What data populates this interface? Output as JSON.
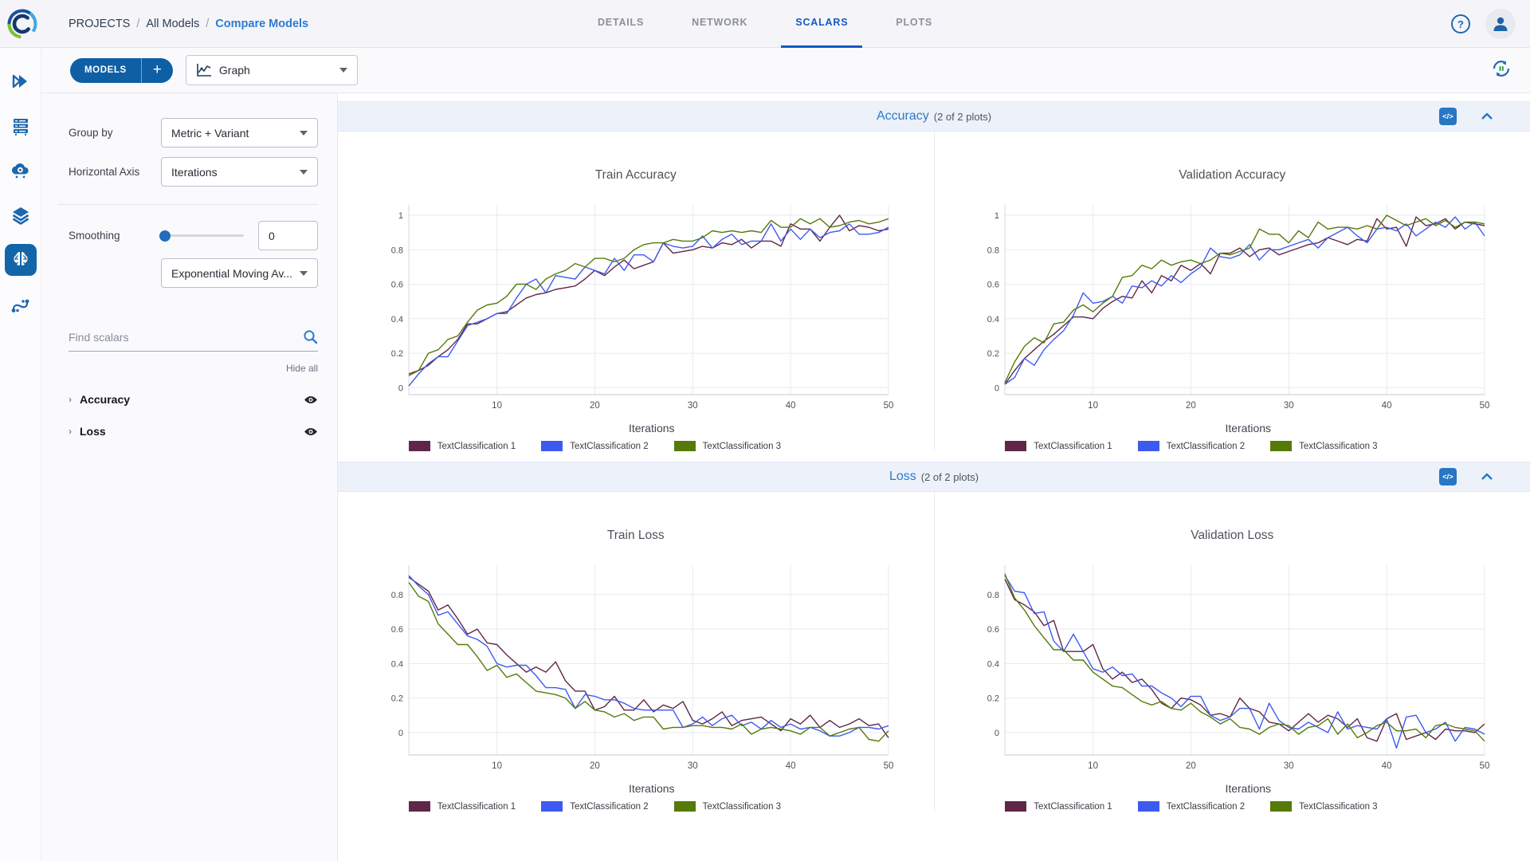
{
  "header": {
    "breadcrumb_separator": "/",
    "breadcrumbs": [
      {
        "label": "PROJECTS"
      },
      {
        "label": "All Models"
      },
      {
        "label": "Compare Models"
      }
    ],
    "tabs": [
      {
        "label": "DETAILS",
        "active": false
      },
      {
        "label": "NETWORK",
        "active": false
      },
      {
        "label": "SCALARS",
        "active": true
      },
      {
        "label": "PLOTS",
        "active": false
      }
    ]
  },
  "toolbar": {
    "models_button_label": "MODELS",
    "add_button_label": "+",
    "view_selector_value": "Graph"
  },
  "sidebar_rail": {
    "items": [
      "chevrons",
      "servers",
      "cloud-gear",
      "layers",
      "brain",
      "pipelines"
    ],
    "active_item": "brain"
  },
  "controls": {
    "group_by_label": "Group by",
    "group_by_value": "Metric + Variant",
    "horizontal_axis_label": "Horizontal Axis",
    "horizontal_axis_value": "Iterations",
    "smoothing_label": "Smoothing",
    "smoothing_value": "0",
    "smoothing_type_value": "Exponential Moving Av...",
    "search_placeholder": "Find scalars",
    "hide_all_label": "Hide all",
    "metric_groups": [
      {
        "label": "Accuracy"
      },
      {
        "label": "Loss"
      }
    ]
  },
  "sections": [
    {
      "title": "Accuracy",
      "subtitle": "(2 of 2 plots)",
      "code_icon_label": "</>"
    },
    {
      "title": "Loss",
      "subtitle": "(2 of 2 plots)",
      "code_icon_label": "</>"
    }
  ],
  "colors": {
    "series1": "#5f2747",
    "series2": "#3d5af0",
    "series3": "#557a0a",
    "accent_blue": "#2777c4",
    "grid": "#e7eaf2",
    "axis": "#c4c8d2"
  },
  "chart_data": [
    {
      "type": "line",
      "title": "Train Accuracy",
      "xlabel": "Iterations",
      "x_ticks": [
        10,
        20,
        30,
        40,
        50
      ],
      "y_ticks": [
        0,
        0.2,
        0.4,
        0.6,
        0.8,
        1
      ],
      "xlim": [
        1,
        50
      ],
      "ylim": [
        -0.04,
        1.06
      ],
      "series": [
        {
          "name": "TextClassification 1",
          "color": "#5f2747",
          "values": [
            0.08,
            0.1,
            0.13,
            0.18,
            0.22,
            0.28,
            0.37,
            0.37,
            0.4,
            0.43,
            0.44,
            0.48,
            0.52,
            0.54,
            0.55,
            0.57,
            0.58,
            0.59,
            0.63,
            0.68,
            0.65,
            0.7,
            0.74,
            0.69,
            0.71,
            0.73,
            0.84,
            0.78,
            0.79,
            0.8,
            0.82,
            0.81,
            0.84,
            0.83,
            0.86,
            0.81,
            0.85,
            0.85,
            0.82,
            0.95,
            0.92,
            0.92,
            0.85,
            0.93,
            1.0,
            0.91,
            0.94,
            0.93,
            0.91,
            0.92
          ]
        },
        {
          "name": "TextClassification 2",
          "color": "#3d5af0",
          "values": [
            0.01,
            0.08,
            0.14,
            0.18,
            0.18,
            0.27,
            0.36,
            0.38,
            0.4,
            0.43,
            0.43,
            0.52,
            0.6,
            0.63,
            0.55,
            0.65,
            0.64,
            0.63,
            0.7,
            0.68,
            0.66,
            0.75,
            0.68,
            0.77,
            0.77,
            0.73,
            0.84,
            0.82,
            0.81,
            0.82,
            0.88,
            0.81,
            0.86,
            0.89,
            0.83,
            0.85,
            0.85,
            0.95,
            0.85,
            0.92,
            0.86,
            0.92,
            0.87,
            0.9,
            0.91,
            0.95,
            0.89,
            0.89,
            0.9,
            0.93
          ]
        },
        {
          "name": "TextClassification 3",
          "color": "#557a0a",
          "values": [
            0.07,
            0.1,
            0.2,
            0.22,
            0.28,
            0.3,
            0.38,
            0.45,
            0.48,
            0.49,
            0.53,
            0.6,
            0.6,
            0.57,
            0.63,
            0.66,
            0.68,
            0.72,
            0.7,
            0.75,
            0.75,
            0.73,
            0.75,
            0.8,
            0.83,
            0.84,
            0.84,
            0.86,
            0.85,
            0.85,
            0.87,
            0.91,
            0.9,
            0.91,
            0.9,
            0.91,
            0.9,
            0.97,
            0.93,
            0.93,
            0.98,
            0.95,
            0.98,
            0.93,
            0.94,
            0.96,
            0.97,
            0.95,
            0.96,
            0.98
          ]
        }
      ]
    },
    {
      "type": "line",
      "title": "Validation Accuracy",
      "xlabel": "Iterations",
      "x_ticks": [
        10,
        20,
        30,
        40,
        50
      ],
      "y_ticks": [
        0,
        0.2,
        0.4,
        0.6,
        0.8,
        1
      ],
      "xlim": [
        1,
        50
      ],
      "ylim": [
        -0.04,
        1.06
      ],
      "series": [
        {
          "name": "TextClassification 1",
          "color": "#5f2747",
          "values": [
            0.02,
            0.1,
            0.17,
            0.22,
            0.27,
            0.31,
            0.36,
            0.41,
            0.41,
            0.4,
            0.46,
            0.5,
            0.53,
            0.52,
            0.62,
            0.55,
            0.65,
            0.62,
            0.71,
            0.68,
            0.72,
            0.66,
            0.78,
            0.78,
            0.81,
            0.76,
            0.8,
            0.81,
            0.77,
            0.79,
            0.81,
            0.83,
            0.84,
            0.87,
            0.85,
            0.83,
            0.86,
            0.85,
            0.98,
            0.92,
            0.93,
            0.82,
            0.99,
            0.94,
            0.95,
            0.98,
            0.92,
            0.96,
            0.95,
            0.94
          ]
        },
        {
          "name": "TextClassification 2",
          "color": "#3d5af0",
          "values": [
            0.02,
            0.06,
            0.17,
            0.13,
            0.22,
            0.28,
            0.33,
            0.42,
            0.55,
            0.49,
            0.5,
            0.53,
            0.49,
            0.59,
            0.58,
            0.62,
            0.59,
            0.65,
            0.61,
            0.66,
            0.7,
            0.81,
            0.76,
            0.75,
            0.77,
            0.83,
            0.74,
            0.8,
            0.8,
            0.82,
            0.84,
            0.86,
            0.81,
            0.87,
            0.9,
            0.93,
            0.88,
            0.84,
            0.92,
            0.93,
            0.91,
            0.95,
            0.88,
            0.92,
            0.96,
            0.93,
            0.99,
            0.92,
            0.96,
            0.88
          ]
        },
        {
          "name": "TextClassification 3",
          "color": "#557a0a",
          "values": [
            0.03,
            0.15,
            0.24,
            0.29,
            0.26,
            0.37,
            0.38,
            0.45,
            0.48,
            0.44,
            0.49,
            0.53,
            0.64,
            0.65,
            0.71,
            0.69,
            0.74,
            0.71,
            0.73,
            0.74,
            0.72,
            0.74,
            0.78,
            0.77,
            0.79,
            0.81,
            0.92,
            0.89,
            0.89,
            0.84,
            0.91,
            0.87,
            0.96,
            0.92,
            0.93,
            0.93,
            0.92,
            0.94,
            0.92,
            1.0,
            0.97,
            0.94,
            0.96,
            0.98,
            0.94,
            0.97,
            0.93,
            0.96,
            0.96,
            0.95
          ]
        }
      ]
    },
    {
      "type": "line",
      "title": "Train Loss",
      "xlabel": "Iterations",
      "x_ticks": [
        10,
        20,
        30,
        40,
        50
      ],
      "y_ticks": [
        0,
        0.2,
        0.4,
        0.6,
        0.8
      ],
      "xlim": [
        1,
        50
      ],
      "ylim": [
        -0.13,
        0.97
      ],
      "series": [
        {
          "name": "TextClassification 1",
          "color": "#5f2747",
          "values": [
            0.9,
            0.86,
            0.82,
            0.71,
            0.74,
            0.66,
            0.57,
            0.6,
            0.52,
            0.51,
            0.45,
            0.4,
            0.35,
            0.38,
            0.35,
            0.41,
            0.3,
            0.24,
            0.24,
            0.13,
            0.15,
            0.21,
            0.13,
            0.13,
            0.19,
            0.12,
            0.16,
            0.14,
            0.18,
            0.07,
            0.05,
            0.08,
            0.12,
            0.04,
            0.07,
            0.08,
            0.09,
            0.05,
            0.01,
            0.08,
            0.05,
            0.1,
            0.03,
            0.07,
            0.03,
            0.05,
            0.08,
            0.04,
            0.05,
            -0.03
          ]
        },
        {
          "name": "TextClassification 2",
          "color": "#3d5af0",
          "values": [
            0.91,
            0.85,
            0.8,
            0.68,
            0.7,
            0.63,
            0.56,
            0.54,
            0.5,
            0.4,
            0.38,
            0.39,
            0.39,
            0.33,
            0.26,
            0.26,
            0.25,
            0.14,
            0.22,
            0.21,
            0.19,
            0.19,
            0.17,
            0.14,
            0.13,
            0.13,
            0.13,
            0.13,
            0.03,
            0.05,
            0.09,
            0.04,
            0.08,
            0.1,
            0.04,
            0.06,
            0.02,
            0.07,
            0.03,
            0.05,
            0.02,
            0.03,
            0.01,
            -0.02,
            -0.02,
            0.0,
            0.03,
            0.03,
            0.02,
            0.04
          ]
        },
        {
          "name": "TextClassification 3",
          "color": "#557a0a",
          "values": [
            0.87,
            0.79,
            0.76,
            0.63,
            0.57,
            0.51,
            0.51,
            0.44,
            0.36,
            0.39,
            0.32,
            0.34,
            0.29,
            0.24,
            0.23,
            0.22,
            0.2,
            0.14,
            0.18,
            0.13,
            0.12,
            0.09,
            0.11,
            0.07,
            0.09,
            0.09,
            0.02,
            0.03,
            0.03,
            0.04,
            0.04,
            0.03,
            0.03,
            0.02,
            0.05,
            -0.01,
            0.02,
            0.03,
            0.02,
            0.01,
            -0.01,
            0.03,
            0.03,
            -0.02,
            0.0,
            0.02,
            0.03,
            -0.04,
            -0.05,
            0.01
          ]
        }
      ]
    },
    {
      "type": "line",
      "title": "Validation Loss",
      "xlabel": "Iterations",
      "x_ticks": [
        10,
        20,
        30,
        40,
        50
      ],
      "y_ticks": [
        0,
        0.2,
        0.4,
        0.6,
        0.8
      ],
      "xlim": [
        1,
        50
      ],
      "ylim": [
        -0.13,
        0.97
      ],
      "series": [
        {
          "name": "TextClassification 1",
          "color": "#5f2747",
          "values": [
            0.89,
            0.77,
            0.74,
            0.7,
            0.62,
            0.65,
            0.47,
            0.47,
            0.47,
            0.51,
            0.37,
            0.31,
            0.35,
            0.29,
            0.31,
            0.25,
            0.17,
            0.14,
            0.2,
            0.19,
            0.16,
            0.1,
            0.11,
            0.09,
            0.2,
            0.14,
            0.12,
            0.06,
            0.05,
            0.01,
            0.06,
            0.11,
            0.06,
            0.1,
            0.08,
            0.03,
            0.08,
            -0.03,
            -0.05,
            0.08,
            0.11,
            -0.04,
            -0.02,
            0.0,
            -0.04,
            0.02,
            0.01,
            0.01,
            0.0,
            0.05
          ]
        },
        {
          "name": "TextClassification 2",
          "color": "#3d5af0",
          "values": [
            0.91,
            0.82,
            0.81,
            0.69,
            0.7,
            0.53,
            0.47,
            0.57,
            0.47,
            0.37,
            0.35,
            0.38,
            0.33,
            0.34,
            0.27,
            0.27,
            0.23,
            0.2,
            0.15,
            0.21,
            0.21,
            0.1,
            0.07,
            0.09,
            0.14,
            0.14,
            0.02,
            0.17,
            0.07,
            0.03,
            0.02,
            0.06,
            0.03,
            0.0,
            0.12,
            0.02,
            0.04,
            0.03,
            0.02,
            0.08,
            -0.09,
            0.09,
            0.1,
            0.0,
            0.02,
            0.06,
            -0.05,
            0.03,
            0.02,
            -0.01
          ]
        },
        {
          "name": "TextClassification 3",
          "color": "#557a0a",
          "values": [
            0.92,
            0.78,
            0.71,
            0.62,
            0.55,
            0.48,
            0.48,
            0.42,
            0.42,
            0.35,
            0.31,
            0.27,
            0.26,
            0.22,
            0.18,
            0.16,
            0.18,
            0.14,
            0.13,
            0.17,
            0.12,
            0.09,
            0.05,
            0.08,
            0.03,
            0.02,
            -0.01,
            0.03,
            0.05,
            0.04,
            -0.01,
            0.03,
            0.04,
            0.08,
            -0.01,
            0.05,
            -0.03,
            0.0,
            0.04,
            0.06,
            0.01,
            0.01,
            0.02,
            -0.03,
            0.04,
            0.05,
            0.03,
            0.02,
            0.01,
            -0.05
          ]
        }
      ]
    }
  ]
}
